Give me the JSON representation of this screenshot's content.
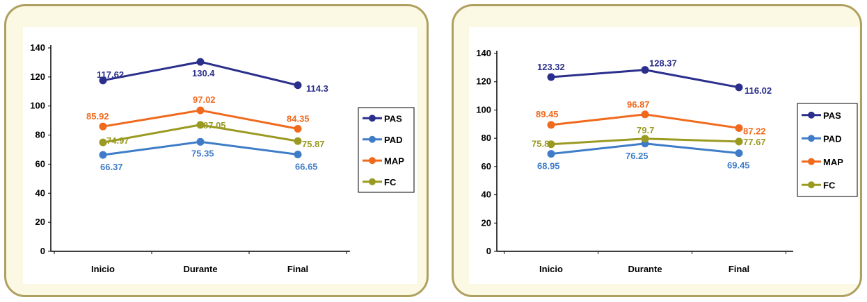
{
  "chart_data": [
    {
      "type": "line",
      "categories": [
        "Inicio",
        "Durante",
        "Final"
      ],
      "ylim": [
        0,
        140
      ],
      "yticks": [
        0,
        20,
        40,
        60,
        80,
        100,
        120,
        140
      ],
      "grid": false,
      "legend_position": "right",
      "series": [
        {
          "name": "PAS",
          "color": "#2b2f8c",
          "values": [
            117.62,
            130.4,
            114.3
          ],
          "labels": [
            "117.62",
            "130.4",
            "114.3"
          ]
        },
        {
          "name": "PAD",
          "color": "#3e7cc8",
          "values": [
            66.37,
            75.35,
            66.65
          ],
          "labels": [
            "66.37",
            "75.35",
            "66.65"
          ]
        },
        {
          "name": "MAP",
          "color": "#f06a1e",
          "values": [
            85.92,
            97.02,
            84.35
          ],
          "labels": [
            "85.92",
            "97.02",
            "84.35"
          ]
        },
        {
          "name": "FC",
          "color": "#9a9a22",
          "values": [
            74.97,
            87.05,
            75.87
          ],
          "labels": [
            "74.97",
            "87.05",
            "75.87"
          ]
        }
      ]
    },
    {
      "type": "line",
      "categories": [
        "Inicio",
        "Durante",
        "Final"
      ],
      "ylim": [
        0,
        140
      ],
      "yticks": [
        0,
        20,
        40,
        60,
        80,
        100,
        120,
        140
      ],
      "grid": false,
      "legend_position": "right",
      "series": [
        {
          "name": "PAS",
          "color": "#2b2f8c",
          "values": [
            123.32,
            128.37,
            116.02
          ],
          "labels": [
            "123.32",
            "128.37",
            "116.02"
          ]
        },
        {
          "name": "PAD",
          "color": "#3e7cc8",
          "values": [
            68.95,
            76.25,
            69.45
          ],
          "labels": [
            "68.95",
            "76.25",
            "69.45"
          ]
        },
        {
          "name": "MAP",
          "color": "#f06a1e",
          "values": [
            89.45,
            96.87,
            87.22
          ],
          "labels": [
            "89.45",
            "96.87",
            "87.22"
          ]
        },
        {
          "name": "FC",
          "color": "#9a9a22",
          "values": [
            75.8,
            79.7,
            77.67
          ],
          "labels": [
            "75.8",
            "79.7",
            "77.67"
          ]
        }
      ]
    }
  ]
}
